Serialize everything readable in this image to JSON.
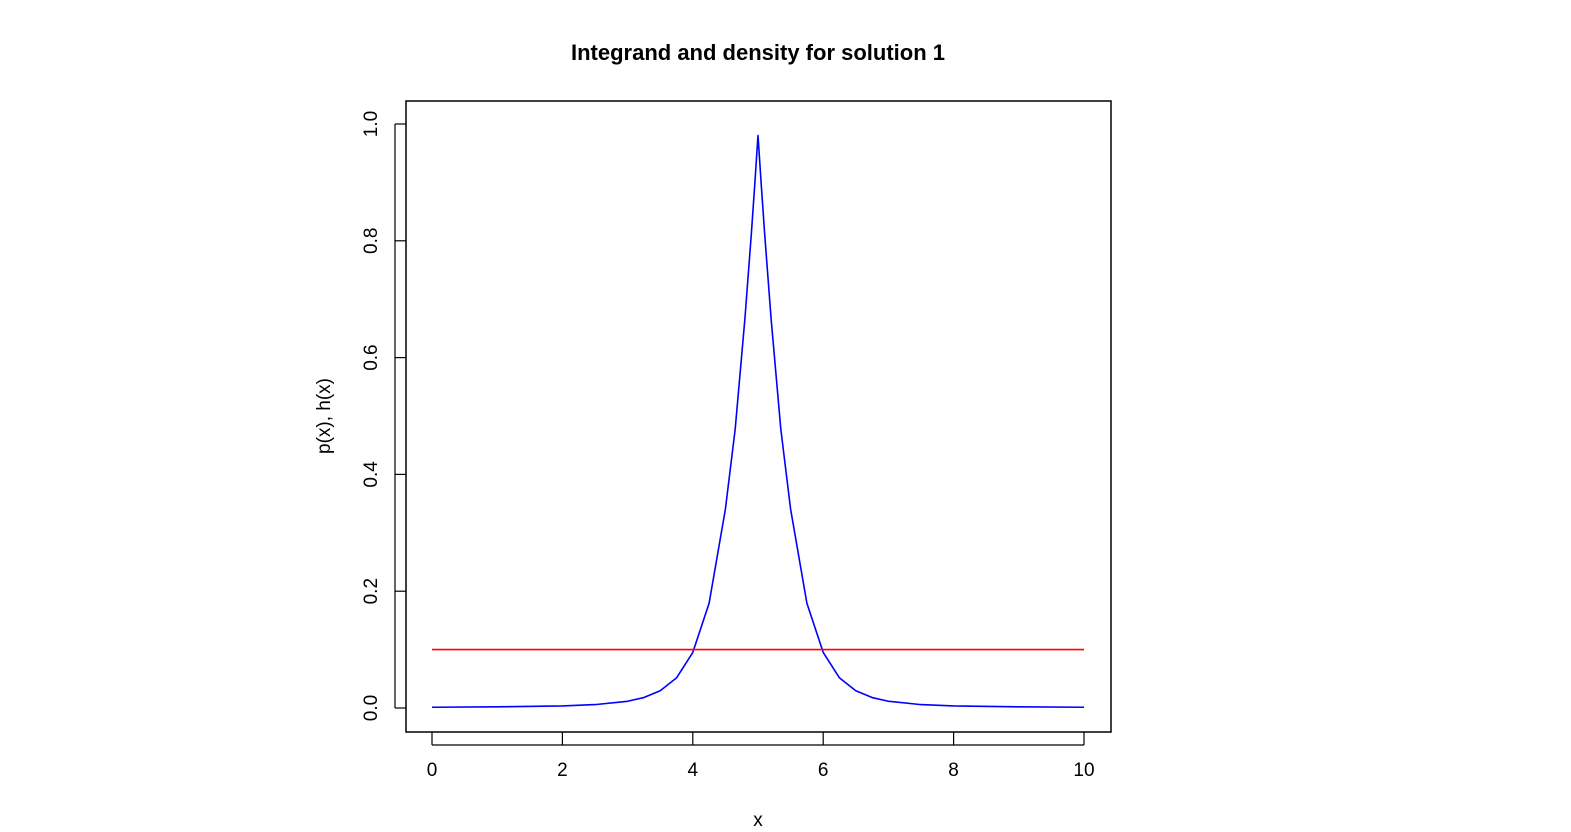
{
  "chart_data": {
    "type": "line",
    "title": "Integrand and density for solution 1",
    "xlabel": "x",
    "ylabel": "p(x), h(x)",
    "xlim": [
      0,
      10
    ],
    "ylim": [
      0.0,
      1.0
    ],
    "x_ticks": [
      0,
      2,
      4,
      6,
      8,
      10
    ],
    "x_tick_labels": [
      "0",
      "2",
      "4",
      "6",
      "8",
      "10"
    ],
    "y_ticks": [
      0.0,
      0.2,
      0.4,
      0.6,
      0.8,
      1.0
    ],
    "y_tick_labels": [
      "0.0",
      "0.2",
      "0.4",
      "0.6",
      "0.8",
      "1.0"
    ],
    "grid": false,
    "legend": "none",
    "series": [
      {
        "name": "h(x)",
        "color": "#0000ff",
        "x": [
          0,
          1,
          2,
          2.5,
          3,
          3.25,
          3.5,
          3.75,
          4,
          4.25,
          4.5,
          4.65,
          4.8,
          4.9,
          4.95,
          5,
          5.05,
          5.1,
          5.2,
          5.35,
          5.5,
          5.75,
          6,
          6.25,
          6.5,
          6.75,
          7,
          7.5,
          8,
          9,
          10
        ],
        "values": [
          0.0013,
          0.002,
          0.0036,
          0.0058,
          0.0115,
          0.0179,
          0.0295,
          0.0515,
          0.0952,
          0.1794,
          0.3406,
          0.4774,
          0.6677,
          0.8152,
          0.8958,
          0.9802,
          0.8958,
          0.8152,
          0.6677,
          0.4774,
          0.3406,
          0.1794,
          0.0952,
          0.0515,
          0.0295,
          0.0179,
          0.0115,
          0.0058,
          0.0036,
          0.002,
          0.0013
        ]
      },
      {
        "name": "p(x)",
        "color": "#ff0000",
        "x": [
          0,
          10
        ],
        "values": [
          0.1,
          0.1
        ]
      }
    ]
  }
}
